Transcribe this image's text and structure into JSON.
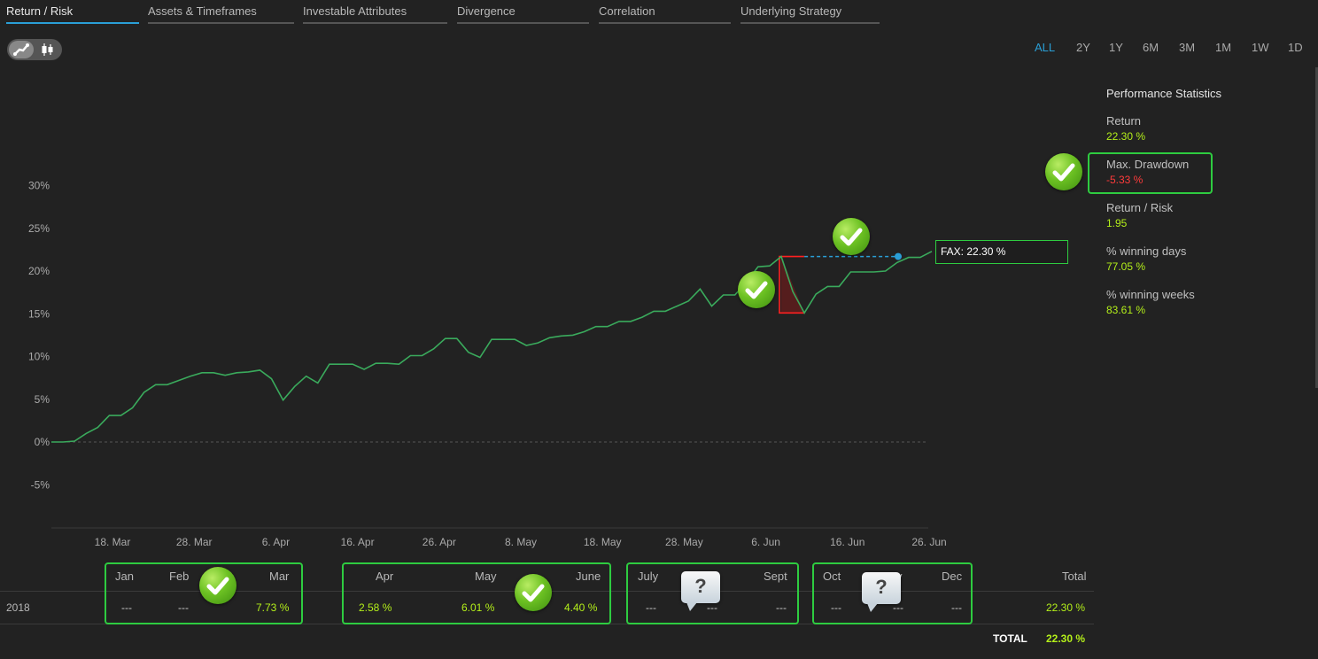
{
  "tabs": [
    {
      "label": "Return / Risk",
      "active": true
    },
    {
      "label": "Assets & Timeframes",
      "active": false
    },
    {
      "label": "Investable Attributes",
      "active": false
    },
    {
      "label": "Divergence",
      "active": false
    },
    {
      "label": "Correlation",
      "active": false
    },
    {
      "label": "Underlying Strategy",
      "active": false
    }
  ],
  "chart_toggle": {
    "options": [
      "line-chart-icon",
      "candlestick-icon"
    ],
    "selected": "line-chart-icon"
  },
  "time_ranges": {
    "options": [
      "ALL",
      "2Y",
      "1Y",
      "6M",
      "3M",
      "1M",
      "1W",
      "1D"
    ],
    "selected": "ALL"
  },
  "colors": {
    "line": "#3aaa5c",
    "positive": "#b4f01a",
    "negative": "#ff3b3b",
    "accent": "#2a9fd6",
    "highlight": "#2ecc40"
  },
  "chart_data": {
    "type": "line",
    "ylim": [
      -10,
      32
    ],
    "yticks": [
      -5,
      0,
      5,
      10,
      15,
      20,
      25,
      30
    ],
    "ytick_labels": [
      "-5%",
      "0%",
      "5%",
      "10%",
      "15%",
      "20%",
      "25%",
      "30%"
    ],
    "xticks": [
      "18. Mar",
      "28. Mar",
      "6. Apr",
      "16. Apr",
      "26. Apr",
      "8. May",
      "18. May",
      "28. May",
      "6. Jun",
      "16. Jun",
      "26. Jun"
    ],
    "series": [
      {
        "name": "FAX",
        "values": [
          0.0,
          0.0,
          0.1,
          1.0,
          1.7,
          3.1,
          3.1,
          4.0,
          5.8,
          6.7,
          6.7,
          7.2,
          7.7,
          8.1,
          8.1,
          7.8,
          8.1,
          8.2,
          8.4,
          7.4,
          4.9,
          6.5,
          7.7,
          6.9,
          9.1,
          9.1,
          9.1,
          8.5,
          9.2,
          9.2,
          9.1,
          10.1,
          10.1,
          10.9,
          12.1,
          12.1,
          10.5,
          9.9,
          12.0,
          12.0,
          12.0,
          11.3,
          11.6,
          12.2,
          12.4,
          12.5,
          12.9,
          13.5,
          13.5,
          14.1,
          14.1,
          14.6,
          15.3,
          15.3,
          15.9,
          16.5,
          17.9,
          15.9,
          17.2,
          17.2,
          18.7,
          20.5,
          20.6,
          21.7,
          17.6,
          15.1,
          17.3,
          18.2,
          18.2,
          19.9,
          19.9,
          19.9,
          20.0,
          21.0,
          21.6,
          21.6,
          22.3
        ]
      }
    ],
    "max_drawdown_marker": {
      "from_value": 21.7,
      "to_value": 15.1
    },
    "tooltip": "FAX: 22.30 %",
    "markers": [
      "check-icon",
      "check-icon"
    ]
  },
  "performance": {
    "title": "Performance Statistics",
    "stats": [
      {
        "label": "Return",
        "value": "22.30 %",
        "negative": false
      },
      {
        "label": "Max. Drawdown",
        "value": "-5.33 %",
        "negative": true
      },
      {
        "label": "Return / Risk",
        "value": "1.95",
        "negative": false
      },
      {
        "label": "% winning days",
        "value": "77.05 %",
        "negative": false
      },
      {
        "label": "% winning weeks",
        "value": "83.61 %",
        "negative": false
      }
    ]
  },
  "monthly_table": {
    "year": "2018",
    "months": [
      {
        "label": "Jan",
        "value": "---"
      },
      {
        "label": "Feb",
        "value": "---"
      },
      {
        "label": "Mar",
        "value": "7.73 %"
      },
      {
        "label": "Apr",
        "value": "2.58 %"
      },
      {
        "label": "May",
        "value": "6.01 %"
      },
      {
        "label": "June",
        "value": "4.40 %"
      },
      {
        "label": "July",
        "value": "---"
      },
      {
        "label": "",
        "value": "---"
      },
      {
        "label": "Sept",
        "value": "---"
      },
      {
        "label": "Oct",
        "value": "---"
      },
      {
        "label": "y",
        "value": "---"
      },
      {
        "label": "Dec",
        "value": "---"
      }
    ],
    "total_header": "Total",
    "row_total": "22.30 %",
    "grand_total_label": "TOTAL",
    "grand_total_value": "22.30 %"
  },
  "bubble_text": "?"
}
